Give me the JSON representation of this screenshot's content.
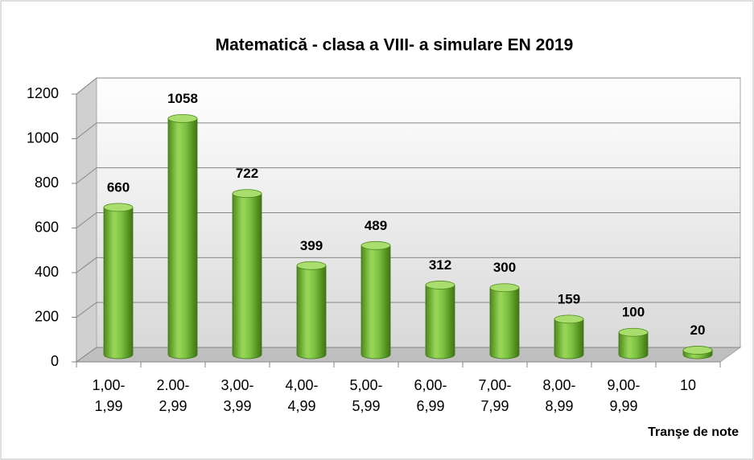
{
  "chart_data": {
    "type": "bar",
    "title": "Matematică - clasa a VIII- a simulare EN 2019",
    "x_label": "Tranşe de note",
    "categories": [
      "1,00-\n1,99",
      "2.00-\n2,99",
      "3,00-\n3,99",
      "4,00-\n4,99",
      "5,00-\n5,99",
      "6,00-\n6,99",
      "7,00-\n7,99",
      "8,00-\n8,99",
      "9,00-\n9,99",
      "10"
    ],
    "values": [
      660,
      1058,
      722,
      399,
      489,
      312,
      300,
      159,
      100,
      20
    ],
    "color": "#7cc242",
    "ylim": [
      0,
      1200
    ],
    "yticks": [
      0,
      200,
      400,
      600,
      800,
      1000,
      1200
    ],
    "grid": true
  }
}
